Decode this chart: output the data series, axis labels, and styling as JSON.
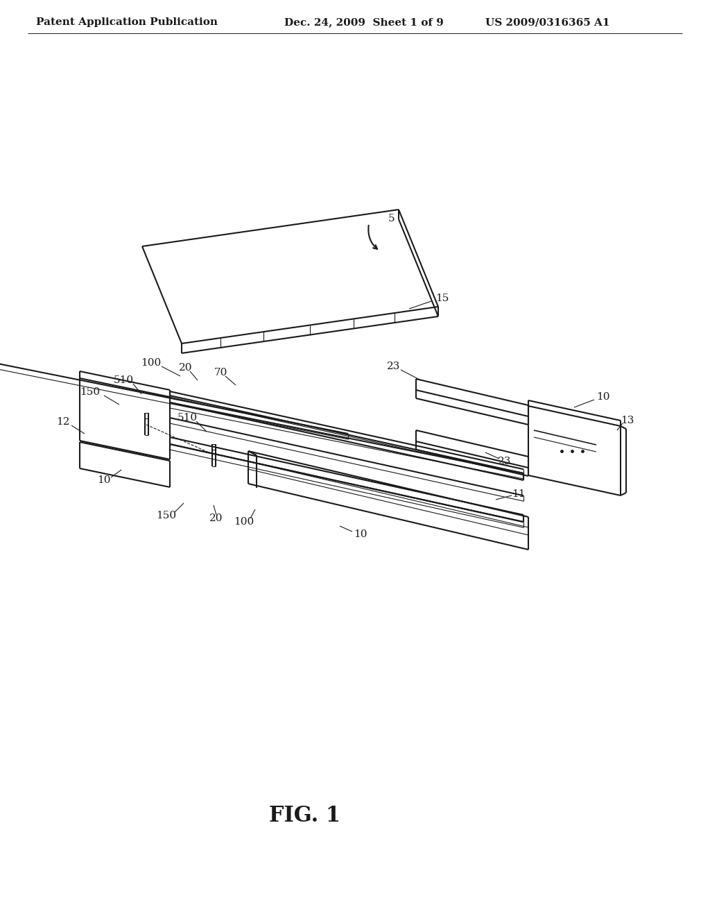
{
  "header_left": "Patent Application Publication",
  "header_mid": "Dec. 24, 2009  Sheet 1 of 9",
  "header_right": "US 2009/0316365 A1",
  "figure_label": "FIG. 1",
  "bg_color": "#ffffff",
  "line_color": "#1a1a1a",
  "header_fontsize": 11,
  "fig_label_fontsize": 22,
  "annotation_fontsize": 11
}
